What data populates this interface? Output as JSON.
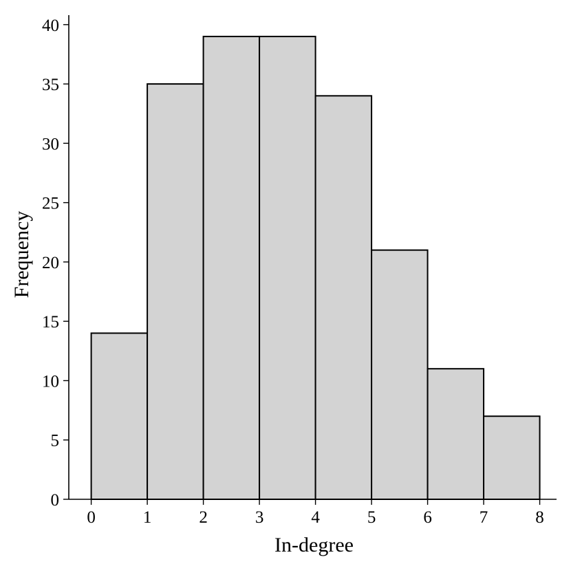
{
  "chart_data": {
    "type": "bar",
    "subtype": "histogram",
    "bin_edges": [
      0,
      1,
      2,
      3,
      4,
      5,
      6,
      7,
      8
    ],
    "values": [
      14,
      35,
      39,
      39,
      34,
      21,
      11,
      7
    ],
    "xlabel": "In-degree",
    "ylabel": "Frequency",
    "xlim": [
      -0.4,
      8.3
    ],
    "ylim": [
      0,
      40.8
    ],
    "xticks": [
      0,
      1,
      2,
      3,
      4,
      5,
      6,
      7,
      8
    ],
    "yticks": [
      0,
      5,
      10,
      15,
      20,
      25,
      30,
      35,
      40
    ],
    "grid": false,
    "bar_color": "#d3d3d3",
    "edge_color": "#000000"
  }
}
